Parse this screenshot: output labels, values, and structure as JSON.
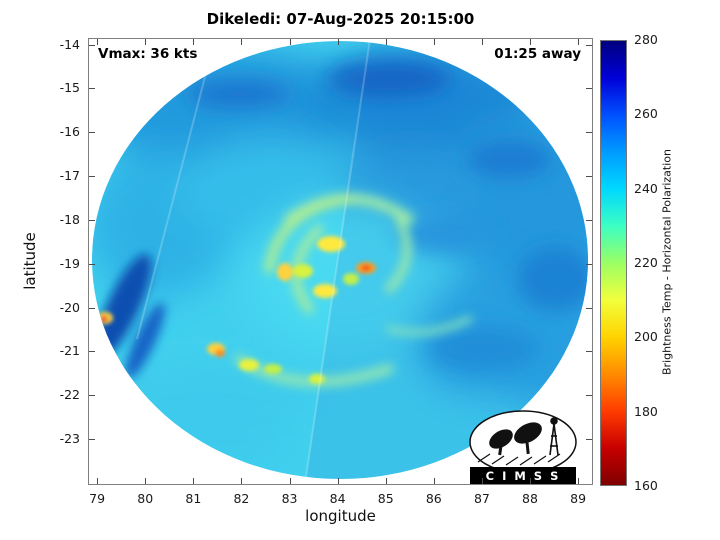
{
  "title": "Dikeledi: 07-Aug-2025 20:15:00",
  "annotations": {
    "vmax": "Vmax: 36 kts",
    "away": "01:25 away"
  },
  "axes": {
    "xlabel": "longitude",
    "ylabel": "latitude"
  },
  "colorbar": {
    "label": "Brightness Temp - Horizontal Polarization",
    "range": [
      160,
      280
    ],
    "ticks": [
      160,
      180,
      200,
      220,
      240,
      260,
      280
    ],
    "gradient_bottom_to_top": [
      "#7f0000",
      "#c80000",
      "#ff3c00",
      "#ff8c00",
      "#ffd300",
      "#f2ff3c",
      "#9bff64",
      "#3cffc3",
      "#00d8ff",
      "#009bff",
      "#0050ff",
      "#0000d8",
      "#00007f"
    ]
  },
  "logo": {
    "text": "C I M S S"
  },
  "chart_data": {
    "type": "heatmap",
    "title": "Dikeledi: 07-Aug-2025 20:15:00",
    "xlabel": "longitude",
    "ylabel": "latitude",
    "xlim": [
      78.81,
      89.31
    ],
    "ylim": [
      -24.05,
      -13.85
    ],
    "x_ticks": [
      79,
      80,
      81,
      82,
      83,
      84,
      85,
      86,
      87,
      88,
      89
    ],
    "y_ticks": [
      -14,
      -15,
      -16,
      -17,
      -18,
      -19,
      -20,
      -21,
      -22,
      -23
    ],
    "grid": false,
    "colorbar_label": "Brightness Temp - Horizontal Polarization",
    "colorbar_range": [
      160,
      280
    ],
    "colorbar_ticks": [
      160,
      180,
      200,
      220,
      240,
      260,
      280
    ],
    "annotations": [
      "Vmax: 36 kts",
      "01:25 away"
    ],
    "swath": {
      "shape": "circular",
      "center": {
        "lon": 84.1,
        "lat": -18.9
      },
      "radius_deg_lon": 5.2,
      "radius_deg_lat": 5.0
    },
    "storm": {
      "name": "Dikeledi",
      "datetime": "07-Aug-2025 20:15:00",
      "vmax_kts": 36,
      "time_to_overpass": "01:25 away",
      "center_estimate": {
        "lon": 83.8,
        "lat": -18.8
      }
    },
    "features": [
      {
        "lon": 83.8,
        "lat": -18.7,
        "tb_K": 208,
        "desc": "eyewall convection ring (yellow-green)"
      },
      {
        "lon": 84.5,
        "lat": -19.1,
        "tb_K": 190,
        "desc": "strongest convective cell (orange-red)"
      },
      {
        "lon": 82.9,
        "lat": -19.2,
        "tb_K": 212,
        "desc": "inner rainband cell"
      },
      {
        "lon": 81.5,
        "lat": -20.9,
        "tb_K": 202,
        "desc": "outer rainband cell with orange core"
      },
      {
        "lon": 82.1,
        "lat": -21.2,
        "tb_K": 212,
        "desc": "outer rainband cell"
      },
      {
        "lon": 82.7,
        "lat": -21.3,
        "tb_K": 220,
        "desc": "outer rainband cell"
      },
      {
        "lon": 79.15,
        "lat": -20.2,
        "tb_K": 182,
        "desc": "isolated cell at swath edge (red spot)"
      },
      {
        "region": "storm environment",
        "tb_K": 243,
        "desc": "cyan background field"
      },
      {
        "region": "north and east of storm",
        "tb_K": 256,
        "desc": "darker blue regions"
      },
      {
        "lon": 79.6,
        "lat": -20.3,
        "tb_K": 265,
        "desc": "dark navy streak near west swath edge"
      }
    ]
  }
}
